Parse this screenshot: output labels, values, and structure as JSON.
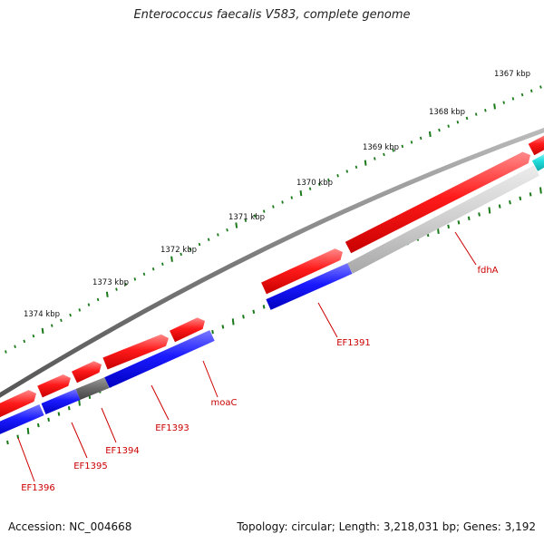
{
  "title": "Enterococcus faecalis V583, complete genome",
  "footer": {
    "accession": "Accession: NC_004668",
    "summary": "Topology: circular; Length: 3,218,031 bp; Genes: 3,192"
  },
  "colors": {
    "backbone": "#7a7a7a",
    "forward_gene": "#ee0000",
    "reverse_gene": "#0000ee",
    "gray_gene": "#666666",
    "light_gene": "#c8c8c8",
    "cyan_gene": "#22dddd",
    "tick": "#1a7a1a",
    "tick_label": "#111111",
    "gene_label": "#cc0000"
  },
  "ticks": [
    {
      "label": "1367 kbp"
    },
    {
      "label": "1368 kbp"
    },
    {
      "label": "1369 kbp"
    },
    {
      "label": "1370 kbp"
    },
    {
      "label": "1371 kbp"
    },
    {
      "label": "1372 kbp"
    },
    {
      "label": "1373 kbp"
    },
    {
      "label": "1374 kbp"
    }
  ],
  "gene_labels": [
    {
      "label": "fdhA"
    },
    {
      "label": "EF1391"
    },
    {
      "label": "moaC"
    },
    {
      "label": "EF1393"
    },
    {
      "label": "EF1394"
    },
    {
      "label": "EF1395"
    },
    {
      "label": "EF1396"
    }
  ]
}
